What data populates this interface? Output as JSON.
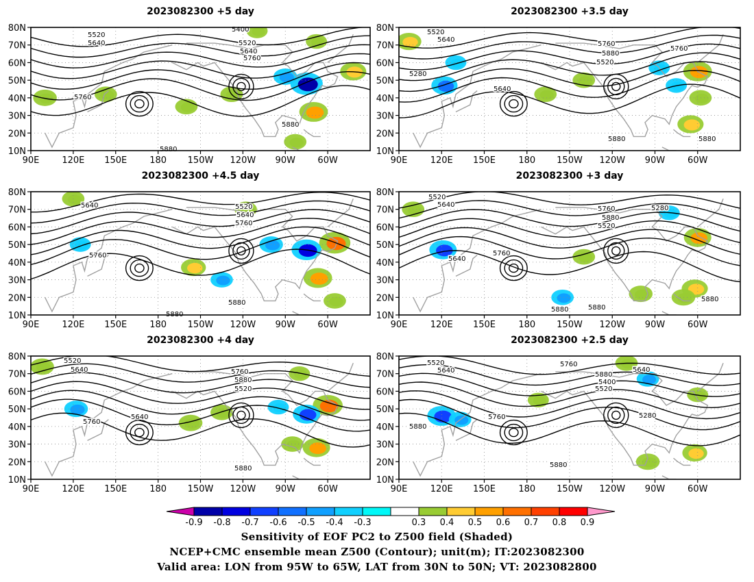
{
  "panels": [
    {
      "title": "2023082300  +5 day",
      "labels": [
        "5520",
        "5640",
        "5400",
        "5520",
        "5640",
        "5760",
        "5760",
        "5880",
        "5880"
      ],
      "shading": [
        {
          "lon": -75,
          "lat": 48,
          "val": -0.8
        },
        {
          "lon": -90,
          "lat": 52,
          "val": -0.45
        },
        {
          "lon": -70,
          "lat": 32,
          "val": 0.65
        },
        {
          "lon": -42,
          "lat": 55,
          "val": 0.55
        },
        {
          "lon": 143,
          "lat": 42,
          "val": 0.4
        },
        {
          "lon": -160,
          "lat": 35,
          "val": 0.4
        },
        {
          "lon": -128,
          "lat": 42,
          "val": 0.4
        },
        {
          "lon": 100,
          "lat": 40,
          "val": 0.45
        },
        {
          "lon": -83,
          "lat": 15,
          "val": 0.4
        },
        {
          "lon": -68,
          "lat": 72,
          "val": 0.35
        },
        {
          "lon": -110,
          "lat": 78,
          "val": 0.35
        }
      ]
    },
    {
      "title": "2023082300  +3.5 day",
      "labels": [
        "5520",
        "5640",
        "5760",
        "5880",
        "5520",
        "5640",
        "5760",
        "5280",
        "5880",
        "5880"
      ],
      "shading": [
        {
          "lon": -60,
          "lat": 55,
          "val": 0.65
        },
        {
          "lon": -87,
          "lat": 57,
          "val": -0.35
        },
        {
          "lon": -75,
          "lat": 47,
          "val": -0.35
        },
        {
          "lon": 122,
          "lat": 47,
          "val": -0.55
        },
        {
          "lon": 97,
          "lat": 72,
          "val": 0.5
        },
        {
          "lon": -167,
          "lat": 42,
          "val": 0.4
        },
        {
          "lon": -140,
          "lat": 50,
          "val": 0.4
        },
        {
          "lon": -65,
          "lat": 25,
          "val": 0.55
        },
        {
          "lon": -58,
          "lat": 40,
          "val": 0.4
        },
        {
          "lon": 130,
          "lat": 60,
          "val": -0.35
        }
      ]
    },
    {
      "title": "2023082300  +4.5 day",
      "labels": [
        "5640",
        "5760",
        "5520",
        "5640",
        "5760",
        "5880",
        "5880"
      ],
      "shading": [
        {
          "lon": -55,
          "lat": 51,
          "val": 0.75
        },
        {
          "lon": -75,
          "lat": 47,
          "val": -0.7
        },
        {
          "lon": -100,
          "lat": 50,
          "val": -0.45
        },
        {
          "lon": -67,
          "lat": 31,
          "val": 0.65
        },
        {
          "lon": -155,
          "lat": 37,
          "val": 0.5
        },
        {
          "lon": 125,
          "lat": 50,
          "val": -0.35
        },
        {
          "lon": -118,
          "lat": 70,
          "val": 0.4
        },
        {
          "lon": 120,
          "lat": 76,
          "val": 0.4
        },
        {
          "lon": -55,
          "lat": 18,
          "val": 0.4
        },
        {
          "lon": -135,
          "lat": 30,
          "val": -0.4
        }
      ]
    },
    {
      "title": "2023082300  +3 day",
      "labels": [
        "5520",
        "5640",
        "5760",
        "5880",
        "5520",
        "5640",
        "5760",
        "5280",
        "5880",
        "5880",
        "5880"
      ],
      "shading": [
        {
          "lon": -60,
          "lat": 54,
          "val": 0.6
        },
        {
          "lon": -80,
          "lat": 68,
          "val": -0.35
        },
        {
          "lon": 121,
          "lat": 47,
          "val": -0.6
        },
        {
          "lon": -62,
          "lat": 25,
          "val": 0.55
        },
        {
          "lon": -100,
          "lat": 22,
          "val": 0.45
        },
        {
          "lon": -140,
          "lat": 43,
          "val": 0.4
        },
        {
          "lon": 100,
          "lat": 70,
          "val": 0.4
        },
        {
          "lon": -155,
          "lat": 20,
          "val": -0.4
        },
        {
          "lon": -70,
          "lat": 20,
          "val": 0.45
        }
      ]
    },
    {
      "title": "2023082300  +4 day",
      "labels": [
        "5520",
        "5640",
        "5760",
        "5880",
        "5520",
        "5640",
        "5760",
        "5880"
      ],
      "shading": [
        {
          "lon": -60,
          "lat": 52,
          "val": 0.7
        },
        {
          "lon": -75,
          "lat": 47,
          "val": -0.6
        },
        {
          "lon": 122,
          "lat": 50,
          "val": -0.45
        },
        {
          "lon": -68,
          "lat": 28,
          "val": 0.6
        },
        {
          "lon": -157,
          "lat": 42,
          "val": 0.45
        },
        {
          "lon": -135,
          "lat": 48,
          "val": 0.4
        },
        {
          "lon": 98,
          "lat": 74,
          "val": 0.45
        },
        {
          "lon": -95,
          "lat": 51,
          "val": -0.35
        },
        {
          "lon": -85,
          "lat": 30,
          "val": 0.4
        },
        {
          "lon": -80,
          "lat": 70,
          "val": 0.35
        }
      ]
    },
    {
      "title": "2023082300  +2.5 day",
      "labels": [
        "5520",
        "5640",
        "5760",
        "5880",
        "5400",
        "5520",
        "5640",
        "5760",
        "5280",
        "5880",
        "5880"
      ],
      "shading": [
        {
          "lon": 120,
          "lat": 46,
          "val": -0.65
        },
        {
          "lon": 133,
          "lat": 44,
          "val": -0.4
        },
        {
          "lon": -95,
          "lat": 67,
          "val": -0.4
        },
        {
          "lon": -110,
          "lat": 76,
          "val": 0.4
        },
        {
          "lon": -62,
          "lat": 25,
          "val": 0.5
        },
        {
          "lon": -95,
          "lat": 20,
          "val": 0.45
        },
        {
          "lon": -60,
          "lat": 58,
          "val": 0.35
        },
        {
          "lon": -172,
          "lat": 55,
          "val": 0.35
        }
      ]
    }
  ],
  "axes": {
    "lat_ticks": [
      "10N",
      "20N",
      "30N",
      "40N",
      "50N",
      "60N",
      "70N",
      "80N"
    ],
    "lon_ticks": [
      "90E",
      "120E",
      "150E",
      "180",
      "150W",
      "120W",
      "90W",
      "60W"
    ],
    "lon_range": [
      90,
      330
    ],
    "lat_range": [
      10,
      80
    ]
  },
  "colorbar": {
    "labels": [
      "-0.9",
      "-0.8",
      "-0.7",
      "-0.6",
      "-0.5",
      "-0.4",
      "-0.3",
      "0.3",
      "0.4",
      "0.5",
      "0.6",
      "0.7",
      "0.8",
      "0.9"
    ],
    "colors": [
      "#0000a8",
      "#0000e0",
      "#1040ff",
      "#1070ff",
      "#10a0ff",
      "#10d0ff",
      "#00f8f8",
      "#ffffff",
      "#99cc33",
      "#ffcc33",
      "#ffa000",
      "#ff7000",
      "#ff4000",
      "#ff0000"
    ],
    "low_color": "#cc00aa",
    "high_color": "#ff99cc"
  },
  "captions": {
    "line1": "Sensitivity of EOF PC2 to Z500 field (Shaded)",
    "line2": "NCEP+CMC ensemble mean Z500 (Contour); unit(m); IT:2023082300",
    "line3": "Valid area: LON from 95W to 65W, LAT from 30N to 50N; VT: 2023082800"
  }
}
